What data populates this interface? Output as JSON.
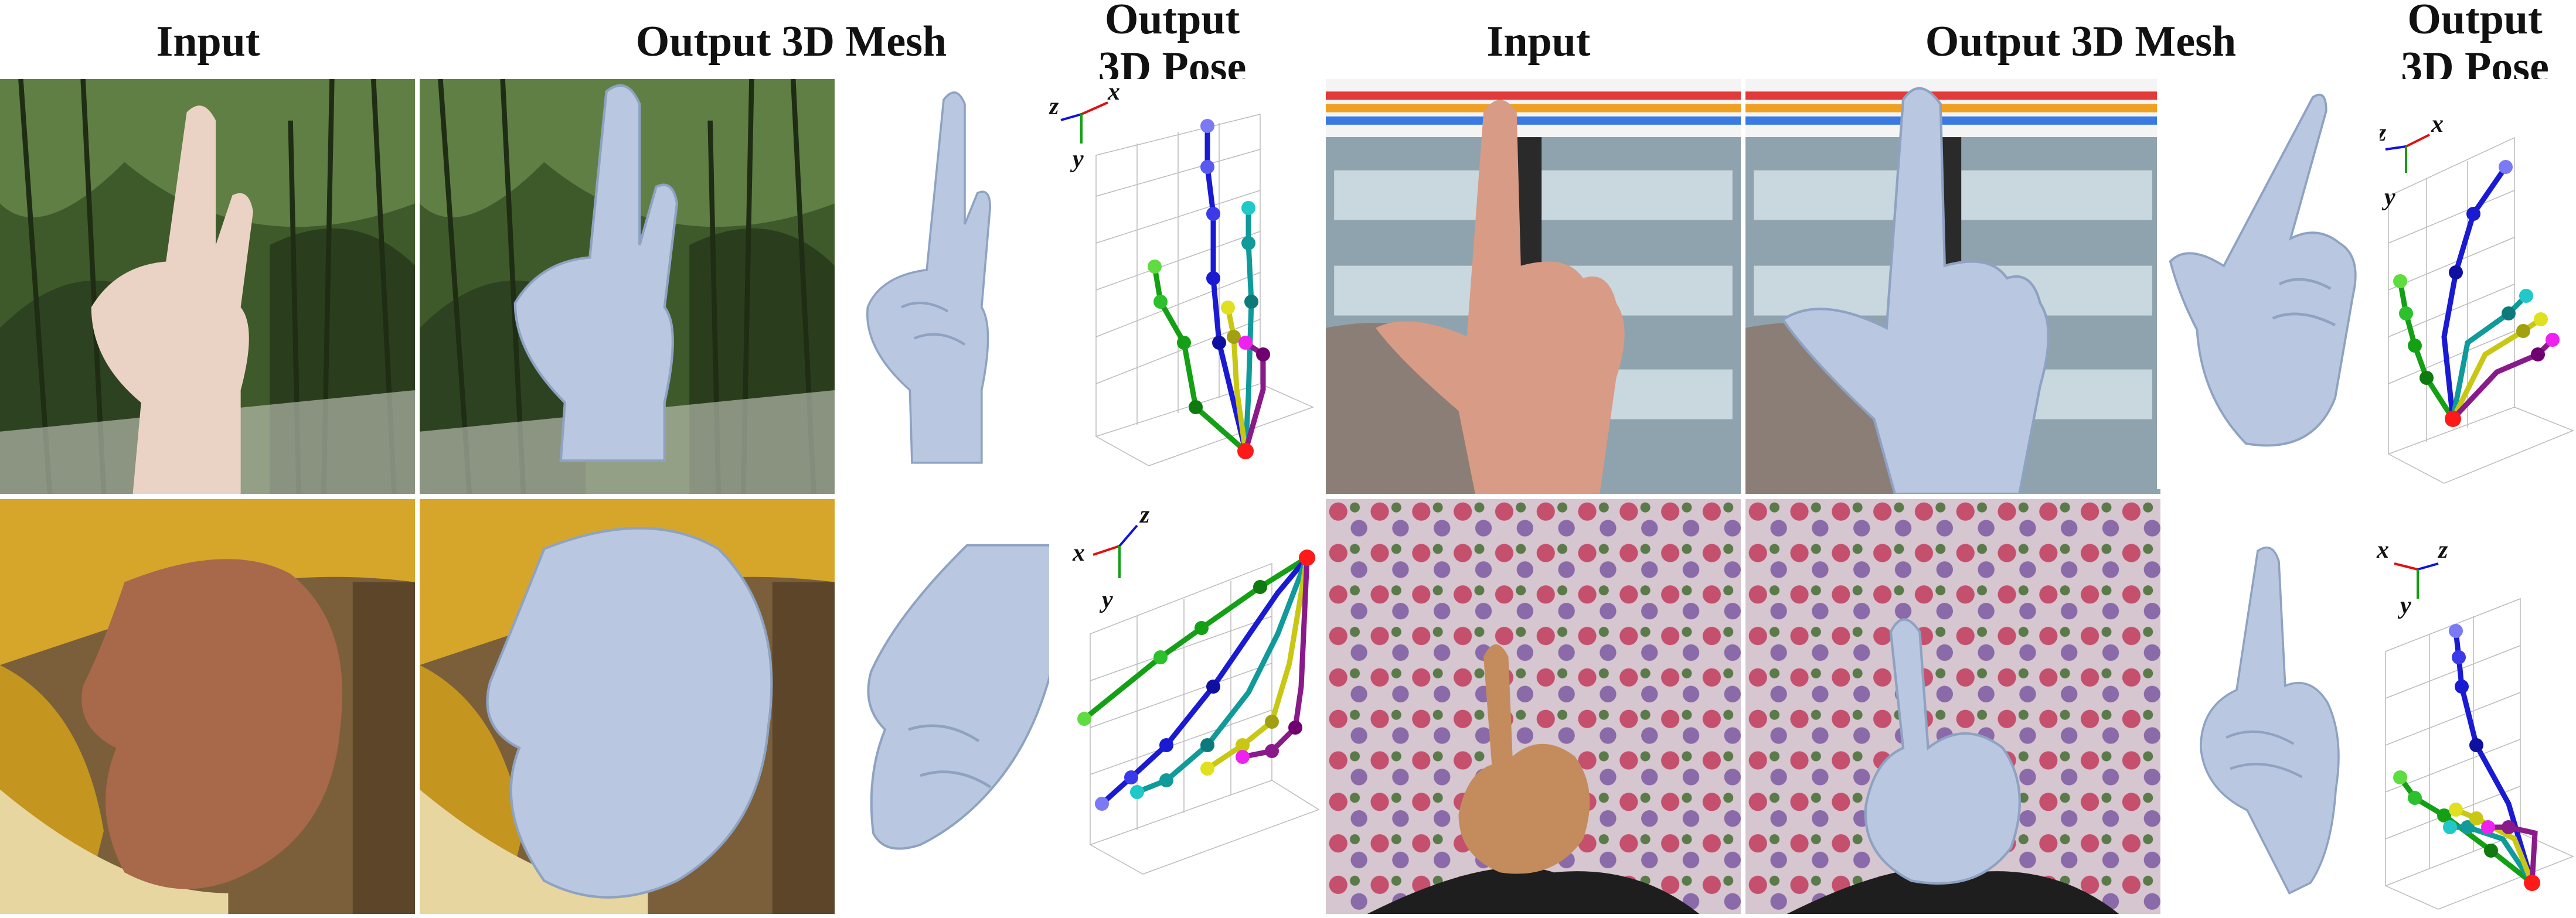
{
  "headers": {
    "input": "Input",
    "mesh": "Output 3D Mesh",
    "pose": "Output\n3D Pose"
  },
  "axes": {
    "x": "x",
    "y": "y",
    "z": "z"
  },
  "colors": {
    "mesh": "#b9c8e0",
    "mesh_shade": "#8ea2c2",
    "root": "#ff1a1a",
    "thumb": "#14a014",
    "index": "#1a1ad2",
    "middle": "#109a9a",
    "ring": "#c8c814",
    "pinky": "#8a1a8a",
    "axis_x": "#e01010",
    "axis_y": "#10a010",
    "axis_z": "#1010e0"
  },
  "panels": [
    {
      "scene": "hand making two-finger gesture in front of leaves",
      "background": "foliage"
    },
    {
      "scene": "hand pointing up in front of drinks fridge",
      "background": "fridge"
    },
    {
      "scene": "hand in yellow sleeve, relaxed",
      "background": "yellow"
    },
    {
      "scene": "hand pointing up in front of floral fabric",
      "background": "floral"
    }
  ]
}
